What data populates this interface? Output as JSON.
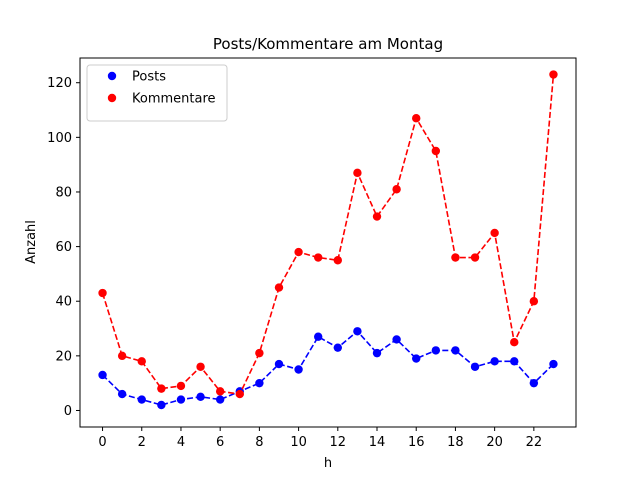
{
  "chart_data": {
    "type": "line",
    "title": "Posts/Kommentare am Montag",
    "xlabel": "h",
    "ylabel": "Anzahl",
    "x": [
      0,
      1,
      2,
      3,
      4,
      5,
      6,
      7,
      8,
      9,
      10,
      11,
      12,
      13,
      14,
      15,
      16,
      17,
      18,
      19,
      20,
      21,
      22,
      23
    ],
    "xticks": [
      0,
      2,
      4,
      6,
      8,
      10,
      12,
      14,
      16,
      18,
      20,
      22
    ],
    "yticks": [
      0,
      20,
      40,
      60,
      80,
      100,
      120
    ],
    "xlim": [
      -1.15,
      24.15
    ],
    "ylim": [
      -6.05,
      129.05
    ],
    "grid": false,
    "legend_position": "top-left",
    "series": [
      {
        "name": "Posts",
        "color": "#0000ff",
        "line_style": "dashed",
        "marker": "circle",
        "values": [
          13,
          6,
          4,
          2,
          4,
          5,
          4,
          7,
          10,
          17,
          15,
          27,
          23,
          29,
          21,
          26,
          19,
          22,
          22,
          16,
          18,
          18,
          10,
          17
        ]
      },
      {
        "name": "Kommentare",
        "color": "#ff0000",
        "line_style": "dashed",
        "marker": "circle",
        "values": [
          43,
          20,
          18,
          8,
          9,
          16,
          7,
          6,
          21,
          45,
          58,
          56,
          55,
          87,
          71,
          81,
          107,
          95,
          56,
          56,
          65,
          25,
          40,
          123
        ]
      }
    ]
  }
}
